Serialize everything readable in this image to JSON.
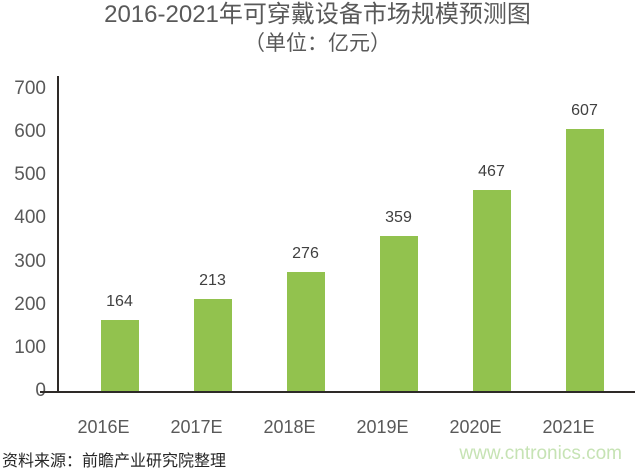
{
  "chart_data": {
    "type": "bar",
    "title": "2016-2021年可穿戴设备市场规模预测图",
    "subtitle": "（单位：亿元）",
    "unit": "亿元",
    "categories": [
      "2016E",
      "2017E",
      "2018E",
      "2019E",
      "2020E",
      "2021E"
    ],
    "values": [
      164,
      213,
      276,
      359,
      467,
      607
    ],
    "ylim": [
      0,
      700
    ],
    "yticks": [
      0,
      100,
      200,
      300,
      400,
      500,
      600,
      700
    ],
    "grid": false,
    "legend": "none",
    "data_labels": true,
    "bar_color": "#92c24e"
  },
  "footer": {
    "source": "资料来源：前瞻产业研究院整理",
    "website": "www.cntronics.com"
  },
  "colors": {
    "background": "#ffffff",
    "bar": "#92c24e",
    "axis": "#2e2a28",
    "title_text": "#595959",
    "tick_text": "#595959",
    "value_text": "#404040",
    "source_text": "#262626",
    "website_text": "#c6e3b4"
  }
}
